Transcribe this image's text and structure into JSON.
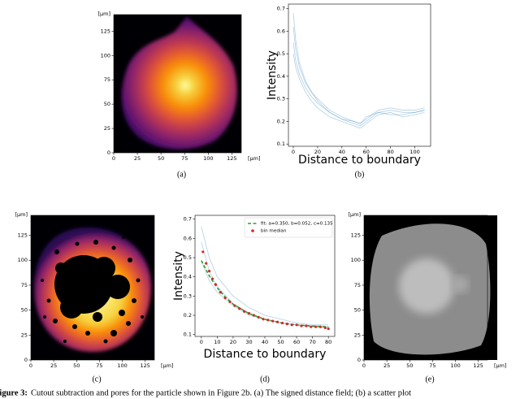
{
  "chart_data": [
    {
      "type": "image",
      "panel_label": "(a)",
      "xlabel": "[μm]",
      "ylabel": "[μm]",
      "xlim": [
        0,
        135
      ],
      "ylim": [
        0,
        142
      ],
      "xticks": [
        0,
        25,
        50,
        75,
        100,
        125
      ],
      "yticks": [
        0,
        25,
        50,
        75,
        100,
        125
      ]
    },
    {
      "type": "line",
      "panel_label": "(b)",
      "xlabel": "Distance to boundary",
      "ylabel": "Intensity",
      "xlim": [
        -4,
        113
      ],
      "ylim": [
        0.09,
        0.72
      ],
      "xticks": [
        0,
        20,
        40,
        60,
        80,
        100
      ],
      "yticks": [
        0.1,
        0.2,
        0.3,
        0.4,
        0.5,
        0.6,
        0.7
      ],
      "series": [
        {
          "color": "#1f77b4",
          "kind": "line",
          "x": [
            0,
            2,
            5,
            10,
            15,
            20,
            30,
            40,
            50,
            55,
            60,
            70,
            80,
            90,
            100,
            108
          ],
          "values": [
            0.62,
            0.52,
            0.44,
            0.37,
            0.33,
            0.29,
            0.24,
            0.21,
            0.19,
            0.18,
            0.2,
            0.24,
            0.25,
            0.24,
            0.24,
            0.25
          ]
        },
        {
          "color": "#1f77b4",
          "kind": "line",
          "x": [
            0,
            2,
            5,
            10,
            15,
            20,
            30,
            40,
            50,
            55,
            60,
            70,
            80,
            90,
            100,
            108
          ],
          "values": [
            0.55,
            0.47,
            0.41,
            0.35,
            0.31,
            0.28,
            0.24,
            0.21,
            0.2,
            0.19,
            0.22,
            0.24,
            0.23,
            0.23,
            0.24,
            0.25
          ]
        },
        {
          "color": "#1f77b4",
          "kind": "line",
          "x": [
            0,
            2,
            5,
            10,
            15,
            20,
            30,
            40,
            50,
            55,
            60,
            70,
            80,
            90,
            100,
            108
          ],
          "values": [
            0.5,
            0.44,
            0.39,
            0.33,
            0.29,
            0.26,
            0.22,
            0.2,
            0.18,
            0.17,
            0.19,
            0.23,
            0.24,
            0.22,
            0.23,
            0.24
          ]
        },
        {
          "color": "#1f77b4",
          "kind": "line",
          "x": [
            0,
            2,
            5,
            10,
            15,
            20,
            30,
            40,
            50,
            55,
            60,
            70,
            80,
            90,
            100,
            108
          ],
          "values": [
            0.68,
            0.56,
            0.46,
            0.38,
            0.33,
            0.3,
            0.25,
            0.22,
            0.2,
            0.19,
            0.21,
            0.25,
            0.26,
            0.25,
            0.25,
            0.26
          ]
        }
      ]
    },
    {
      "type": "image",
      "panel_label": "(c)",
      "xlabel": "[μm]",
      "ylabel": "[μm]",
      "xlim": [
        0,
        135
      ],
      "ylim": [
        0,
        145
      ],
      "xticks": [
        0,
        25,
        50,
        75,
        100,
        125
      ],
      "yticks": [
        0,
        25,
        50,
        75,
        100,
        125
      ]
    },
    {
      "type": "line",
      "panel_label": "(d)",
      "xlabel": "Distance to boundary",
      "ylabel": "Intensity",
      "legend": "upper right",
      "xlim": [
        -4,
        84
      ],
      "ylim": [
        0.09,
        0.72
      ],
      "xticks": [
        0,
        10,
        20,
        30,
        40,
        50,
        60,
        70,
        80
      ],
      "yticks": [
        0.1,
        0.2,
        0.3,
        0.4,
        0.5,
        0.6,
        0.7
      ],
      "series": [
        {
          "color": "#1f77b4",
          "kind": "line",
          "x": [
            0,
            5,
            10,
            20,
            30,
            40,
            50,
            60,
            70,
            80
          ],
          "values": [
            0.58,
            0.43,
            0.35,
            0.26,
            0.21,
            0.18,
            0.16,
            0.15,
            0.14,
            0.14
          ]
        },
        {
          "color": "#1f77b4",
          "kind": "line",
          "x": [
            0,
            5,
            10,
            20,
            30,
            40,
            50,
            60,
            70,
            80
          ],
          "values": [
            0.48,
            0.38,
            0.32,
            0.25,
            0.2,
            0.18,
            0.16,
            0.15,
            0.14,
            0.13
          ]
        },
        {
          "color": "#1f77b4",
          "kind": "line",
          "x": [
            0,
            5,
            10,
            20,
            30,
            40,
            50,
            60,
            70,
            80
          ],
          "values": [
            0.66,
            0.5,
            0.4,
            0.3,
            0.24,
            0.2,
            0.18,
            0.16,
            0.15,
            0.15
          ]
        },
        {
          "name": "fit: a=0.350, b=0.052, c=0.135",
          "color": "#2ca02c",
          "kind": "dashed",
          "x": [
            0,
            5,
            10,
            15,
            20,
            30,
            40,
            50,
            60,
            70,
            80
          ],
          "values": [
            0.485,
            0.405,
            0.343,
            0.295,
            0.258,
            0.209,
            0.179,
            0.161,
            0.15,
            0.144,
            0.14
          ]
        },
        {
          "name": "bin median",
          "color": "#d62728",
          "kind": "points",
          "x": [
            1,
            3,
            5,
            7,
            9,
            12,
            15,
            18,
            21,
            24,
            27,
            30,
            33,
            36,
            39,
            42,
            45,
            48,
            51,
            54,
            57,
            60,
            63,
            66,
            69,
            72,
            75,
            78,
            80
          ],
          "values": [
            0.53,
            0.47,
            0.43,
            0.39,
            0.36,
            0.32,
            0.29,
            0.27,
            0.25,
            0.235,
            0.22,
            0.21,
            0.2,
            0.19,
            0.18,
            0.175,
            0.17,
            0.165,
            0.16,
            0.155,
            0.15,
            0.15,
            0.145,
            0.145,
            0.14,
            0.14,
            0.14,
            0.135,
            0.13
          ]
        }
      ]
    },
    {
      "type": "image",
      "panel_label": "(e)",
      "xlabel": "[μm]",
      "ylabel": "[μm]",
      "xlim": [
        0,
        135
      ],
      "ylim": [
        0,
        145
      ],
      "xticks": [
        0,
        25,
        50,
        75,
        100,
        125
      ],
      "yticks": [
        0,
        25,
        50,
        75,
        100,
        125
      ]
    }
  ],
  "caption": {
    "label": "Figure 3:",
    "text": "Cutout subtraction and pores for the particle shown in Figure 2b. (a) The signed distance field; (b) a scatter plot"
  }
}
